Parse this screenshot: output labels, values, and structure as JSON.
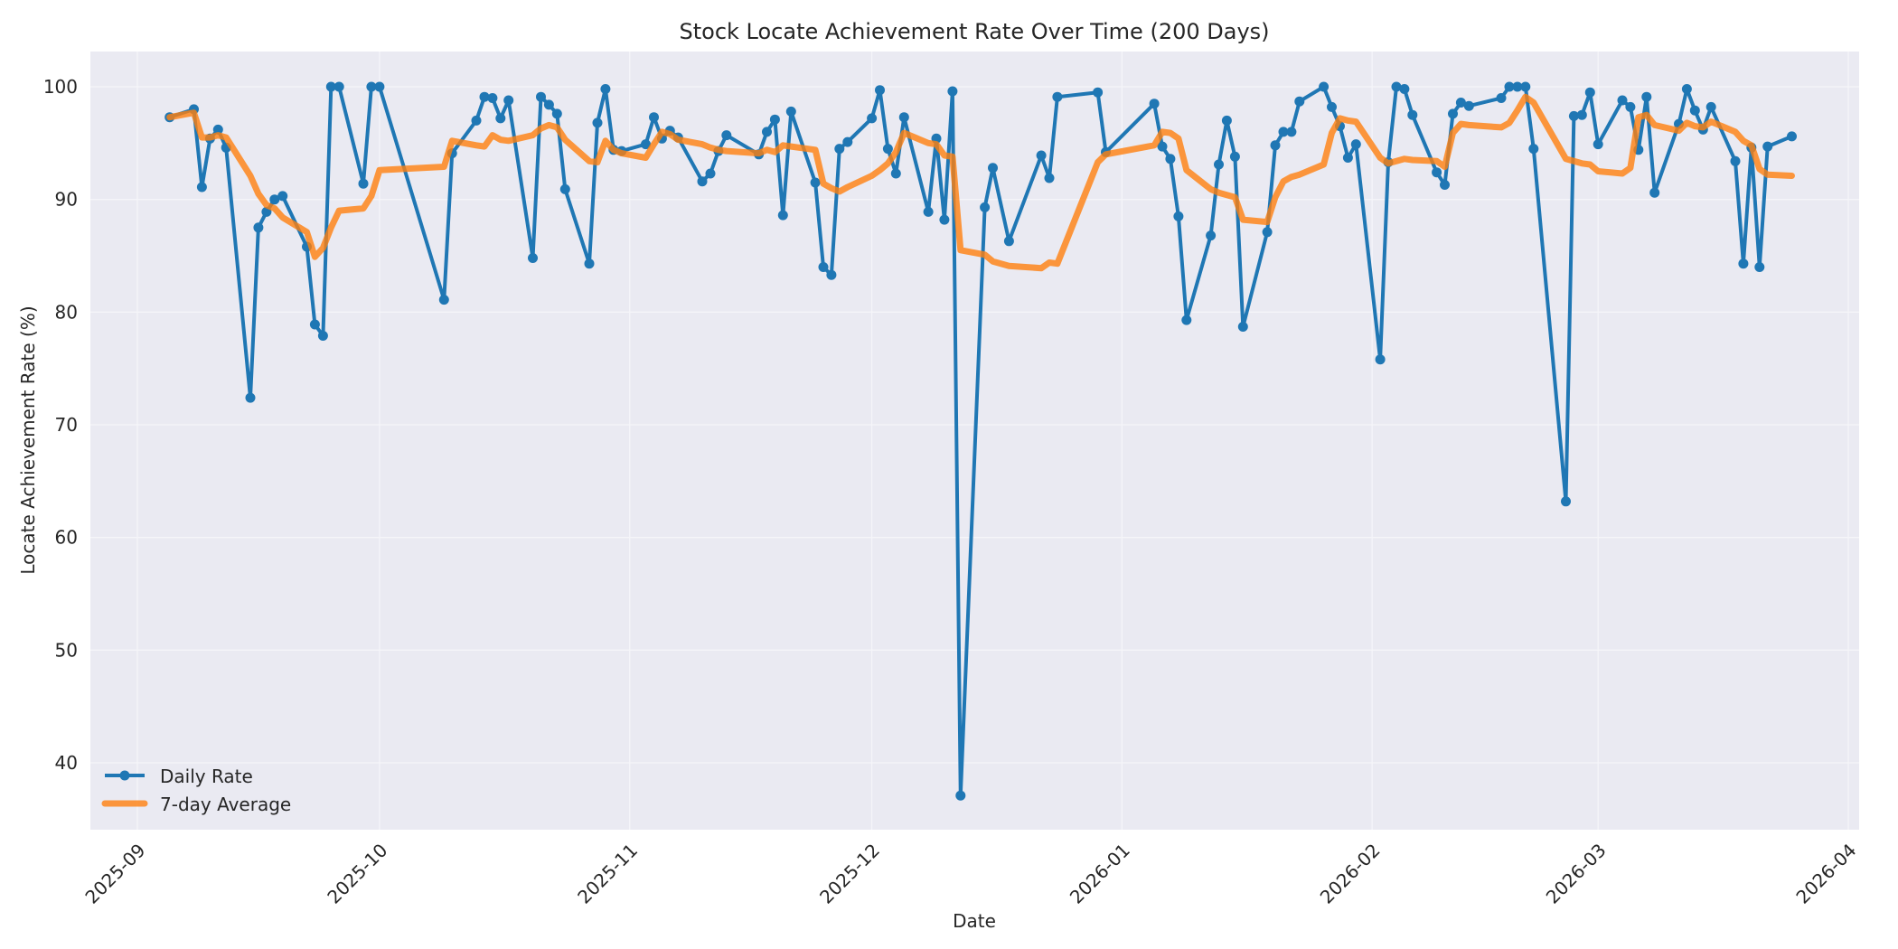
{
  "chart_data": {
    "type": "line",
    "title": "Stock Locate Achievement Rate Over Time (200 Days)",
    "xlabel": "Date",
    "ylabel": "Locate Achievement Rate (%)",
    "ylim": [
      34,
      103
    ],
    "xlim": [
      "2025-08-28",
      "2026-04-01"
    ],
    "grid": true,
    "legend_position": "lower left",
    "x_ticks": [
      "2025-09",
      "2025-10",
      "2025-11",
      "2025-12",
      "2026-01",
      "2026-02",
      "2026-03",
      "2026-04"
    ],
    "y_ticks": [
      40,
      50,
      60,
      70,
      80,
      90,
      100
    ],
    "series": [
      {
        "name": "Daily Rate",
        "color": "#1f77b4",
        "marker": "circle",
        "points": [
          [
            "2025-09-05",
            97.3
          ],
          [
            "2025-09-08",
            98.0
          ],
          [
            "2025-09-09",
            91.1
          ],
          [
            "2025-09-10",
            95.4
          ],
          [
            "2025-09-11",
            96.2
          ],
          [
            "2025-09-12",
            94.6
          ],
          [
            "2025-09-15",
            72.4
          ],
          [
            "2025-09-16",
            87.5
          ],
          [
            "2025-09-17",
            88.9
          ],
          [
            "2025-09-18",
            90.0
          ],
          [
            "2025-09-19",
            90.3
          ],
          [
            "2025-09-22",
            85.8
          ],
          [
            "2025-09-23",
            78.9
          ],
          [
            "2025-09-24",
            77.9
          ],
          [
            "2025-09-25",
            100.0
          ],
          [
            "2025-09-26",
            100.0
          ],
          [
            "2025-09-29",
            91.4
          ],
          [
            "2025-09-30",
            100.0
          ],
          [
            "2025-10-01",
            100.0
          ],
          [
            "2025-10-09",
            81.1
          ],
          [
            "2025-10-10",
            94.1
          ],
          [
            "2025-10-13",
            97.0
          ],
          [
            "2025-10-14",
            99.1
          ],
          [
            "2025-10-15",
            99.0
          ],
          [
            "2025-10-16",
            97.2
          ],
          [
            "2025-10-17",
            98.8
          ],
          [
            "2025-10-20",
            84.8
          ],
          [
            "2025-10-21",
            99.1
          ],
          [
            "2025-10-22",
            98.4
          ],
          [
            "2025-10-23",
            97.6
          ],
          [
            "2025-10-24",
            90.9
          ],
          [
            "2025-10-27",
            84.3
          ],
          [
            "2025-10-28",
            96.8
          ],
          [
            "2025-10-29",
            99.8
          ],
          [
            "2025-10-30",
            94.4
          ],
          [
            "2025-10-31",
            94.3
          ],
          [
            "2025-11-03",
            94.9
          ],
          [
            "2025-11-04",
            97.3
          ],
          [
            "2025-11-05",
            95.4
          ],
          [
            "2025-11-06",
            96.1
          ],
          [
            "2025-11-07",
            95.5
          ],
          [
            "2025-11-10",
            91.6
          ],
          [
            "2025-11-11",
            92.3
          ],
          [
            "2025-11-12",
            94.3
          ],
          [
            "2025-11-13",
            95.7
          ],
          [
            "2025-11-17",
            94.0
          ],
          [
            "2025-11-18",
            96.0
          ],
          [
            "2025-11-19",
            97.1
          ],
          [
            "2025-11-20",
            88.6
          ],
          [
            "2025-11-21",
            97.8
          ],
          [
            "2025-11-24",
            91.5
          ],
          [
            "2025-11-25",
            84.0
          ],
          [
            "2025-11-26",
            83.3
          ],
          [
            "2025-11-27",
            94.5
          ],
          [
            "2025-11-28",
            95.1
          ],
          [
            "2025-12-01",
            97.2
          ],
          [
            "2025-12-02",
            99.7
          ],
          [
            "2025-12-03",
            94.5
          ],
          [
            "2025-12-04",
            92.3
          ],
          [
            "2025-12-05",
            97.3
          ],
          [
            "2025-12-08",
            88.9
          ],
          [
            "2025-12-09",
            95.4
          ],
          [
            "2025-12-10",
            88.2
          ],
          [
            "2025-12-11",
            99.6
          ],
          [
            "2025-12-12",
            37.1
          ],
          [
            "2025-12-15",
            89.3
          ],
          [
            "2025-12-16",
            92.8
          ],
          [
            "2025-12-18",
            86.3
          ],
          [
            "2025-12-22",
            93.9
          ],
          [
            "2025-12-23",
            91.9
          ],
          [
            "2025-12-24",
            99.1
          ],
          [
            "2025-12-29",
            99.5
          ],
          [
            "2025-12-30",
            94.2
          ],
          [
            "2026-01-05",
            98.5
          ],
          [
            "2026-01-06",
            94.7
          ],
          [
            "2026-01-07",
            93.6
          ],
          [
            "2026-01-08",
            88.5
          ],
          [
            "2026-01-09",
            79.3
          ],
          [
            "2026-01-12",
            86.8
          ],
          [
            "2026-01-13",
            93.1
          ],
          [
            "2026-01-14",
            97.0
          ],
          [
            "2026-01-15",
            93.8
          ],
          [
            "2026-01-16",
            78.7
          ],
          [
            "2026-01-19",
            87.1
          ],
          [
            "2026-01-20",
            94.8
          ],
          [
            "2026-01-21",
            96.0
          ],
          [
            "2026-01-22",
            96.0
          ],
          [
            "2026-01-23",
            98.7
          ],
          [
            "2026-01-26",
            100.0
          ],
          [
            "2026-01-27",
            98.2
          ],
          [
            "2026-01-28",
            96.5
          ],
          [
            "2026-01-29",
            93.7
          ],
          [
            "2026-01-30",
            94.9
          ],
          [
            "2026-02-02",
            75.8
          ],
          [
            "2026-02-03",
            93.3
          ],
          [
            "2026-02-04",
            100.0
          ],
          [
            "2026-02-05",
            99.8
          ],
          [
            "2026-02-06",
            97.5
          ],
          [
            "2026-02-09",
            92.4
          ],
          [
            "2026-02-10",
            91.3
          ],
          [
            "2026-02-11",
            97.6
          ],
          [
            "2026-02-12",
            98.6
          ],
          [
            "2026-02-13",
            98.3
          ],
          [
            "2026-02-17",
            99.0
          ],
          [
            "2026-02-18",
            100.0
          ],
          [
            "2026-02-19",
            100.0
          ],
          [
            "2026-02-20",
            100.0
          ],
          [
            "2026-02-21",
            94.5
          ],
          [
            "2026-02-25",
            63.2
          ],
          [
            "2026-02-26",
            97.4
          ],
          [
            "2026-02-27",
            97.5
          ],
          [
            "2026-02-28",
            99.5
          ],
          [
            "2026-03-01",
            94.9
          ],
          [
            "2026-03-04",
            98.8
          ],
          [
            "2026-03-05",
            98.2
          ],
          [
            "2026-03-06",
            94.4
          ],
          [
            "2026-03-07",
            99.1
          ],
          [
            "2026-03-08",
            90.6
          ],
          [
            "2026-03-11",
            96.7
          ],
          [
            "2026-03-12",
            99.8
          ],
          [
            "2026-03-13",
            97.9
          ],
          [
            "2026-03-14",
            96.2
          ],
          [
            "2026-03-15",
            98.2
          ],
          [
            "2026-03-18",
            93.4
          ],
          [
            "2026-03-19",
            84.3
          ],
          [
            "2026-03-20",
            94.6
          ],
          [
            "2026-03-21",
            84.0
          ],
          [
            "2026-03-22",
            94.7
          ],
          [
            "2026-03-25",
            95.6
          ]
        ]
      },
      {
        "name": "7-day Average",
        "color": "#ff7f0e",
        "points": [
          [
            "2025-09-05",
            97.3
          ],
          [
            "2025-09-08",
            97.7
          ],
          [
            "2025-09-09",
            95.5
          ],
          [
            "2025-09-10",
            95.5
          ],
          [
            "2025-09-11",
            95.7
          ],
          [
            "2025-09-12",
            95.5
          ],
          [
            "2025-09-15",
            92.1
          ],
          [
            "2025-09-16",
            90.5
          ],
          [
            "2025-09-17",
            89.5
          ],
          [
            "2025-09-18",
            89.2
          ],
          [
            "2025-09-19",
            88.4
          ],
          [
            "2025-09-22",
            87.1
          ],
          [
            "2025-09-23",
            84.9
          ],
          [
            "2025-09-24",
            85.7
          ],
          [
            "2025-09-25",
            87.5
          ],
          [
            "2025-09-26",
            89.0
          ],
          [
            "2025-09-29",
            89.2
          ],
          [
            "2025-09-30",
            90.3
          ],
          [
            "2025-10-01",
            92.6
          ],
          [
            "2025-10-09",
            92.9
          ],
          [
            "2025-10-10",
            95.2
          ],
          [
            "2025-10-13",
            94.8
          ],
          [
            "2025-10-14",
            94.7
          ],
          [
            "2025-10-15",
            95.7
          ],
          [
            "2025-10-16",
            95.3
          ],
          [
            "2025-10-17",
            95.2
          ],
          [
            "2025-10-20",
            95.7
          ],
          [
            "2025-10-21",
            96.3
          ],
          [
            "2025-10-22",
            96.6
          ],
          [
            "2025-10-23",
            96.4
          ],
          [
            "2025-10-24",
            95.3
          ],
          [
            "2025-10-27",
            93.4
          ],
          [
            "2025-10-28",
            93.3
          ],
          [
            "2025-10-29",
            95.2
          ],
          [
            "2025-10-30",
            94.4
          ],
          [
            "2025-10-31",
            94.1
          ],
          [
            "2025-11-03",
            93.7
          ],
          [
            "2025-11-04",
            94.9
          ],
          [
            "2025-11-05",
            96.0
          ],
          [
            "2025-11-06",
            95.8
          ],
          [
            "2025-11-07",
            95.3
          ],
          [
            "2025-11-10",
            94.9
          ],
          [
            "2025-11-11",
            94.6
          ],
          [
            "2025-11-12",
            94.4
          ],
          [
            "2025-11-13",
            94.3
          ],
          [
            "2025-11-17",
            94.1
          ],
          [
            "2025-11-18",
            94.4
          ],
          [
            "2025-11-19",
            94.2
          ],
          [
            "2025-11-20",
            94.8
          ],
          [
            "2025-11-21",
            94.7
          ],
          [
            "2025-11-24",
            94.4
          ],
          [
            "2025-11-25",
            91.4
          ],
          [
            "2025-11-26",
            91.0
          ],
          [
            "2025-11-27",
            90.7
          ],
          [
            "2025-11-28",
            91.1
          ],
          [
            "2025-12-01",
            92.1
          ],
          [
            "2025-12-02",
            92.6
          ],
          [
            "2025-12-03",
            93.2
          ],
          [
            "2025-12-04",
            94.2
          ],
          [
            "2025-12-05",
            95.9
          ],
          [
            "2025-12-08",
            95.0
          ],
          [
            "2025-12-09",
            94.9
          ],
          [
            "2025-12-10",
            93.9
          ],
          [
            "2025-12-11",
            93.8
          ],
          [
            "2025-12-12",
            85.5
          ],
          [
            "2025-12-15",
            85.1
          ],
          [
            "2025-12-16",
            84.5
          ],
          [
            "2025-12-18",
            84.1
          ],
          [
            "2025-12-22",
            83.9
          ],
          [
            "2025-12-23",
            84.4
          ],
          [
            "2025-12-24",
            84.3
          ],
          [
            "2025-12-29",
            93.3
          ],
          [
            "2025-12-30",
            94.0
          ],
          [
            "2026-01-05",
            94.8
          ],
          [
            "2026-01-06",
            96.0
          ],
          [
            "2026-01-07",
            95.9
          ],
          [
            "2026-01-08",
            95.4
          ],
          [
            "2026-01-09",
            92.6
          ],
          [
            "2026-01-12",
            90.9
          ],
          [
            "2026-01-13",
            90.6
          ],
          [
            "2026-01-14",
            90.4
          ],
          [
            "2026-01-15",
            90.2
          ],
          [
            "2026-01-16",
            88.2
          ],
          [
            "2026-01-19",
            88.0
          ],
          [
            "2026-01-20",
            90.2
          ],
          [
            "2026-01-21",
            91.6
          ],
          [
            "2026-01-22",
            92.0
          ],
          [
            "2026-01-23",
            92.2
          ],
          [
            "2026-01-26",
            93.1
          ],
          [
            "2026-01-27",
            95.9
          ],
          [
            "2026-01-28",
            97.2
          ],
          [
            "2026-01-29",
            97.0
          ],
          [
            "2026-01-30",
            96.9
          ],
          [
            "2026-02-02",
            93.7
          ],
          [
            "2026-02-03",
            93.2
          ],
          [
            "2026-02-04",
            93.4
          ],
          [
            "2026-02-05",
            93.6
          ],
          [
            "2026-02-06",
            93.5
          ],
          [
            "2026-02-09",
            93.4
          ],
          [
            "2026-02-10",
            92.9
          ],
          [
            "2026-02-11",
            95.9
          ],
          [
            "2026-02-12",
            96.7
          ],
          [
            "2026-02-13",
            96.6
          ],
          [
            "2026-02-17",
            96.4
          ],
          [
            "2026-02-18",
            96.8
          ],
          [
            "2026-02-19",
            97.9
          ],
          [
            "2026-02-20",
            99.1
          ],
          [
            "2026-02-21",
            98.6
          ],
          [
            "2026-02-25",
            93.6
          ],
          [
            "2026-02-26",
            93.4
          ],
          [
            "2026-02-27",
            93.2
          ],
          [
            "2026-02-28",
            93.1
          ],
          [
            "2026-03-01",
            92.5
          ],
          [
            "2026-03-04",
            92.3
          ],
          [
            "2026-03-05",
            92.8
          ],
          [
            "2026-03-06",
            97.3
          ],
          [
            "2026-03-07",
            97.5
          ],
          [
            "2026-03-08",
            96.6
          ],
          [
            "2026-03-11",
            96.1
          ],
          [
            "2026-03-12",
            96.8
          ],
          [
            "2026-03-13",
            96.5
          ],
          [
            "2026-03-14",
            96.4
          ],
          [
            "2026-03-15",
            96.9
          ],
          [
            "2026-03-18",
            96.0
          ],
          [
            "2026-03-19",
            95.2
          ],
          [
            "2026-03-20",
            94.8
          ],
          [
            "2026-03-21",
            92.7
          ],
          [
            "2026-03-22",
            92.2
          ],
          [
            "2026-03-25",
            92.1
          ]
        ]
      }
    ]
  },
  "legend": {
    "items": [
      {
        "label": "Daily Rate",
        "color": "#1f77b4"
      },
      {
        "label": "7-day Average",
        "color": "#ff7f0e"
      }
    ]
  },
  "colors": {
    "plot_background": "#eaeaf2",
    "grid": "#f4f4f8",
    "text": "#262626"
  }
}
